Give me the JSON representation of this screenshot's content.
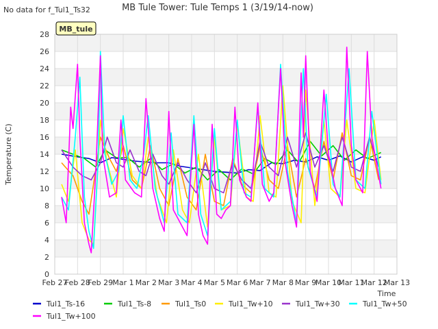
{
  "chart_data": {
    "type": "line",
    "title": "MB Tule Tower: Tule Temps 1 (3/19/14-now)",
    "no_data_note": "No data for f_Tul1_Ts32",
    "site_label": "MB_tule",
    "xlabel": "Time",
    "ylabel": "Temperature (C)",
    "ylim": [
      0,
      28
    ],
    "yticks": [
      0,
      2,
      4,
      6,
      8,
      10,
      12,
      14,
      16,
      18,
      20,
      22,
      24,
      26,
      28
    ],
    "xlim": [
      0,
      15
    ],
    "xticks": [
      {
        "value": 0,
        "label": "Feb 27"
      },
      {
        "value": 1,
        "label": "Feb 28"
      },
      {
        "value": 2,
        "label": "Feb 29"
      },
      {
        "value": 3,
        "label": "Mar 1"
      },
      {
        "value": 4,
        "label": "Mar 2"
      },
      {
        "value": 5,
        "label": "Mar 3"
      },
      {
        "value": 6,
        "label": "Mar 4"
      },
      {
        "value": 7,
        "label": "Mar 5"
      },
      {
        "value": 8,
        "label": "Mar 6"
      },
      {
        "value": 9,
        "label": "Mar 7"
      },
      {
        "value": 10,
        "label": "Mar 8"
      },
      {
        "value": 11,
        "label": "Mar 9"
      },
      {
        "value": 12,
        "label": "Mar 10"
      },
      {
        "value": 13,
        "label": "Mar 11"
      },
      {
        "value": 14,
        "label": "Mar 12"
      },
      {
        "value": 15,
        "label": "Mar 13"
      }
    ],
    "grid": true,
    "legend_position": "bottom",
    "series": [
      {
        "name": "Tul1_Ts-16",
        "color": "#0000cc",
        "points": [
          [
            0.3,
            14.0
          ],
          [
            1.0,
            13.7
          ],
          [
            1.5,
            13.5
          ],
          [
            2.0,
            13.0
          ],
          [
            2.5,
            13.6
          ],
          [
            3.0,
            13.4
          ],
          [
            3.5,
            13.2
          ],
          [
            4.0,
            13.1
          ],
          [
            4.5,
            13.0
          ],
          [
            5.0,
            13.0
          ],
          [
            5.5,
            12.6
          ],
          [
            6.0,
            12.4
          ],
          [
            6.5,
            12.2
          ],
          [
            7.0,
            12.0
          ],
          [
            7.5,
            11.9
          ],
          [
            8.0,
            11.8
          ],
          [
            8.5,
            12.2
          ],
          [
            9.0,
            12.1
          ],
          [
            9.5,
            13.0
          ],
          [
            10.0,
            12.9
          ],
          [
            10.5,
            13.3
          ],
          [
            11.0,
            13.1
          ],
          [
            11.5,
            13.7
          ],
          [
            12.0,
            13.3
          ],
          [
            12.5,
            13.8
          ],
          [
            13.0,
            13.1
          ],
          [
            13.5,
            13.7
          ],
          [
            14.0,
            13.3
          ],
          [
            14.3,
            13.7
          ]
        ]
      },
      {
        "name": "Tul1_Ts-8",
        "color": "#00cc00",
        "points": [
          [
            0.3,
            14.5
          ],
          [
            0.8,
            14.0
          ],
          [
            1.3,
            13.5
          ],
          [
            1.8,
            12.5
          ],
          [
            2.2,
            14.5
          ],
          [
            2.7,
            13.6
          ],
          [
            3.2,
            13.6
          ],
          [
            3.7,
            12.5
          ],
          [
            4.2,
            13.5
          ],
          [
            4.7,
            12.2
          ],
          [
            5.2,
            12.9
          ],
          [
            5.7,
            11.8
          ],
          [
            6.2,
            12.5
          ],
          [
            6.7,
            11.0
          ],
          [
            7.2,
            12.2
          ],
          [
            7.7,
            11.0
          ],
          [
            8.2,
            12.3
          ],
          [
            8.7,
            11.7
          ],
          [
            9.2,
            13.5
          ],
          [
            9.7,
            12.8
          ],
          [
            10.2,
            14.5
          ],
          [
            10.7,
            13.0
          ],
          [
            11.2,
            15.5
          ],
          [
            11.7,
            13.8
          ],
          [
            12.2,
            15.0
          ],
          [
            12.7,
            13.3
          ],
          [
            13.2,
            14.5
          ],
          [
            13.7,
            13.5
          ],
          [
            14.3,
            14.2
          ]
        ]
      },
      {
        "name": "Tul1_Ts0",
        "color": "#ff9900",
        "points": [
          [
            0.3,
            13.0
          ],
          [
            0.8,
            11.5
          ],
          [
            1.2,
            8.5
          ],
          [
            1.5,
            7.0
          ],
          [
            1.7,
            10.5
          ],
          [
            2.0,
            16.0
          ],
          [
            2.4,
            13.5
          ],
          [
            2.7,
            12.0
          ],
          [
            3.0,
            15.0
          ],
          [
            3.4,
            11.0
          ],
          [
            3.8,
            10.0
          ],
          [
            4.2,
            15.0
          ],
          [
            4.6,
            10.0
          ],
          [
            5.0,
            8.0
          ],
          [
            5.4,
            13.5
          ],
          [
            5.8,
            9.0
          ],
          [
            6.2,
            7.5
          ],
          [
            6.6,
            14.0
          ],
          [
            7.0,
            8.5
          ],
          [
            7.4,
            8.0
          ],
          [
            7.8,
            13.5
          ],
          [
            8.2,
            10.5
          ],
          [
            8.6,
            9.5
          ],
          [
            9.0,
            15.0
          ],
          [
            9.4,
            11.0
          ],
          [
            9.8,
            10.0
          ],
          [
            10.2,
            15.0
          ],
          [
            10.6,
            9.0
          ],
          [
            11.0,
            13.5
          ],
          [
            11.4,
            10.0
          ],
          [
            11.8,
            15.5
          ],
          [
            12.2,
            11.0
          ],
          [
            12.6,
            16.5
          ],
          [
            13.0,
            11.5
          ],
          [
            13.4,
            11.0
          ],
          [
            13.8,
            16.0
          ],
          [
            14.2,
            11.0
          ]
        ]
      },
      {
        "name": "Tul1_Tw+10",
        "color": "#ffee00",
        "points": [
          [
            0.3,
            10.5
          ],
          [
            0.6,
            8.5
          ],
          [
            0.9,
            14.5
          ],
          [
            1.2,
            6.0
          ],
          [
            1.5,
            4.0
          ],
          [
            1.7,
            3.5
          ],
          [
            2.0,
            18.0
          ],
          [
            2.3,
            13.0
          ],
          [
            2.7,
            9.0
          ],
          [
            3.0,
            17.0
          ],
          [
            3.4,
            11.5
          ],
          [
            3.8,
            10.0
          ],
          [
            4.1,
            16.0
          ],
          [
            4.5,
            9.0
          ],
          [
            4.9,
            6.0
          ],
          [
            5.2,
            14.5
          ],
          [
            5.6,
            7.5
          ],
          [
            5.9,
            6.0
          ],
          [
            6.3,
            14.0
          ],
          [
            6.7,
            5.5
          ],
          [
            7.0,
            16.0
          ],
          [
            7.3,
            7.5
          ],
          [
            7.7,
            8.0
          ],
          [
            8.0,
            17.5
          ],
          [
            8.4,
            9.0
          ],
          [
            8.7,
            8.5
          ],
          [
            9.0,
            18.5
          ],
          [
            9.4,
            9.5
          ],
          [
            9.7,
            9.0
          ],
          [
            10.0,
            22.0
          ],
          [
            10.4,
            8.5
          ],
          [
            10.8,
            6.0
          ],
          [
            11.0,
            21.5
          ],
          [
            11.4,
            8.0
          ],
          [
            11.8,
            18.0
          ],
          [
            12.1,
            10.0
          ],
          [
            12.5,
            9.0
          ],
          [
            12.8,
            18.0
          ],
          [
            13.2,
            10.0
          ],
          [
            13.6,
            9.5
          ],
          [
            14.0,
            18.0
          ],
          [
            14.3,
            11.0
          ]
        ]
      },
      {
        "name": "Tul1_Tw+30",
        "color": "#9933cc",
        "points": [
          [
            0.3,
            14.5
          ],
          [
            0.8,
            12.5
          ],
          [
            1.2,
            11.5
          ],
          [
            1.6,
            11.0
          ],
          [
            2.0,
            13.0
          ],
          [
            2.3,
            16.0
          ],
          [
            2.7,
            13.0
          ],
          [
            3.0,
            12.5
          ],
          [
            3.3,
            14.5
          ],
          [
            3.7,
            12.0
          ],
          [
            4.0,
            11.5
          ],
          [
            4.3,
            14.0
          ],
          [
            4.7,
            11.5
          ],
          [
            5.0,
            10.5
          ],
          [
            5.4,
            13.0
          ],
          [
            5.8,
            11.0
          ],
          [
            6.2,
            9.5
          ],
          [
            6.6,
            13.0
          ],
          [
            7.0,
            10.0
          ],
          [
            7.4,
            9.5
          ],
          [
            7.8,
            13.0
          ],
          [
            8.2,
            11.0
          ],
          [
            8.6,
            10.0
          ],
          [
            9.0,
            15.5
          ],
          [
            9.4,
            12.5
          ],
          [
            9.8,
            11.5
          ],
          [
            10.2,
            16.0
          ],
          [
            10.6,
            12.5
          ],
          [
            11.0,
            16.5
          ],
          [
            11.4,
            12.5
          ],
          [
            11.8,
            15.0
          ],
          [
            12.2,
            12.0
          ],
          [
            12.6,
            16.0
          ],
          [
            13.0,
            12.5
          ],
          [
            13.4,
            12.0
          ],
          [
            13.8,
            16.0
          ],
          [
            14.2,
            12.5
          ]
        ]
      },
      {
        "name": "Tul1_Tw+50",
        "color": "#00ffff",
        "points": [
          [
            0.3,
            9.0
          ],
          [
            0.6,
            7.5
          ],
          [
            0.9,
            16.0
          ],
          [
            1.1,
            23.0
          ],
          [
            1.3,
            9.0
          ],
          [
            1.5,
            5.0
          ],
          [
            1.7,
            3.0
          ],
          [
            1.9,
            13.0
          ],
          [
            2.0,
            26.0
          ],
          [
            2.2,
            14.0
          ],
          [
            2.5,
            10.5
          ],
          [
            2.8,
            12.0
          ],
          [
            3.0,
            18.5
          ],
          [
            3.3,
            11.0
          ],
          [
            3.6,
            10.0
          ],
          [
            3.9,
            14.0
          ],
          [
            4.1,
            18.5
          ],
          [
            4.4,
            10.0
          ],
          [
            4.8,
            6.0
          ],
          [
            5.1,
            16.5
          ],
          [
            5.4,
            7.0
          ],
          [
            5.8,
            6.0
          ],
          [
            6.1,
            18.5
          ],
          [
            6.4,
            7.0
          ],
          [
            6.7,
            4.5
          ],
          [
            7.0,
            17.0
          ],
          [
            7.3,
            7.5
          ],
          [
            7.7,
            8.5
          ],
          [
            8.0,
            18.0
          ],
          [
            8.3,
            9.5
          ],
          [
            8.6,
            9.0
          ],
          [
            8.9,
            19.5
          ],
          [
            9.2,
            10.0
          ],
          [
            9.6,
            9.0
          ],
          [
            9.9,
            24.5
          ],
          [
            10.2,
            12.0
          ],
          [
            10.6,
            6.0
          ],
          [
            10.9,
            24.0
          ],
          [
            11.1,
            12.5
          ],
          [
            11.5,
            9.0
          ],
          [
            11.9,
            21.0
          ],
          [
            12.2,
            10.5
          ],
          [
            12.5,
            9.0
          ],
          [
            12.9,
            24.0
          ],
          [
            13.2,
            11.0
          ],
          [
            13.6,
            10.0
          ],
          [
            13.9,
            19.0
          ],
          [
            14.3,
            10.5
          ]
        ]
      },
      {
        "name": "Tul1_Tw+100",
        "color": "#ff00ff",
        "points": [
          [
            0.3,
            9.0
          ],
          [
            0.5,
            6.0
          ],
          [
            0.7,
            19.5
          ],
          [
            0.8,
            17.0
          ],
          [
            1.0,
            24.5
          ],
          [
            1.1,
            16.0
          ],
          [
            1.3,
            6.0
          ],
          [
            1.5,
            3.5
          ],
          [
            1.6,
            2.5
          ],
          [
            1.8,
            12.0
          ],
          [
            2.0,
            25.5
          ],
          [
            2.1,
            14.0
          ],
          [
            2.4,
            9.0
          ],
          [
            2.7,
            9.5
          ],
          [
            2.9,
            18.0
          ],
          [
            3.1,
            11.0
          ],
          [
            3.5,
            9.5
          ],
          [
            3.8,
            9.0
          ],
          [
            4.0,
            20.5
          ],
          [
            4.3,
            10.0
          ],
          [
            4.6,
            6.5
          ],
          [
            4.8,
            5.0
          ],
          [
            5.0,
            19.0
          ],
          [
            5.2,
            7.5
          ],
          [
            5.5,
            6.0
          ],
          [
            5.8,
            4.5
          ],
          [
            6.1,
            17.5
          ],
          [
            6.3,
            7.0
          ],
          [
            6.5,
            4.5
          ],
          [
            6.7,
            3.5
          ],
          [
            6.9,
            17.5
          ],
          [
            7.1,
            7.0
          ],
          [
            7.3,
            6.5
          ],
          [
            7.5,
            7.5
          ],
          [
            7.7,
            8.0
          ],
          [
            7.9,
            19.5
          ],
          [
            8.1,
            11.0
          ],
          [
            8.4,
            9.0
          ],
          [
            8.6,
            8.5
          ],
          [
            8.9,
            20.0
          ],
          [
            9.1,
            10.5
          ],
          [
            9.4,
            8.5
          ],
          [
            9.6,
            9.5
          ],
          [
            9.9,
            24.0
          ],
          [
            10.1,
            13.0
          ],
          [
            10.4,
            8.0
          ],
          [
            10.6,
            5.5
          ],
          [
            10.8,
            23.5
          ],
          [
            10.9,
            16.0
          ],
          [
            11.0,
            25.5
          ],
          [
            11.2,
            12.0
          ],
          [
            11.5,
            8.5
          ],
          [
            11.8,
            21.5
          ],
          [
            12.0,
            14.0
          ],
          [
            12.3,
            10.0
          ],
          [
            12.6,
            8.0
          ],
          [
            12.8,
            26.5
          ],
          [
            13.0,
            15.0
          ],
          [
            13.2,
            11.0
          ],
          [
            13.5,
            9.5
          ],
          [
            13.7,
            26.0
          ],
          [
            13.9,
            16.0
          ],
          [
            14.1,
            13.0
          ],
          [
            14.3,
            10.0
          ]
        ]
      }
    ]
  }
}
